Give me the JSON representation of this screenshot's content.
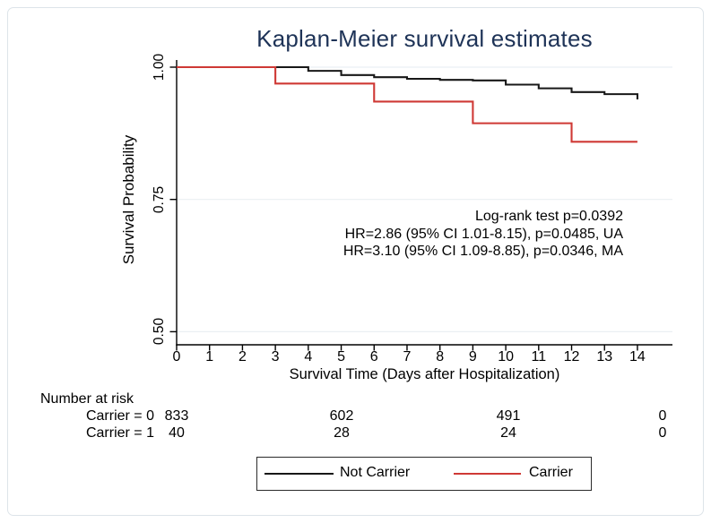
{
  "figure": {
    "title": "Kaplan-Meier survival estimates",
    "title_color": "#1e3357",
    "background": "#ffffff",
    "border_color": "#dde4e9"
  },
  "chart_data": {
    "type": "line",
    "subtype": "kaplan-meier-step",
    "title": "Kaplan-Meier survival estimates",
    "xlabel": "Survival Time (Days after Hospitalization)",
    "ylabel": "Survival Probability",
    "xlim": [
      0,
      15.1
    ],
    "ylim": [
      0.475,
      1.01
    ],
    "grid": "horizontal-light",
    "x_ticks": [
      0,
      1,
      2,
      3,
      4,
      5,
      6,
      7,
      8,
      9,
      10,
      11,
      12,
      13,
      14
    ],
    "y_ticks": [
      {
        "value": 1.0,
        "label": "1.00"
      },
      {
        "value": 0.75,
        "label": "0.75"
      },
      {
        "value": 0.5,
        "label": "0.50"
      }
    ],
    "series": [
      {
        "name": "Not Carrier",
        "color": "#181818",
        "end_day": 14,
        "steps": [
          [
            0,
            1.0
          ],
          [
            4,
            0.993
          ],
          [
            5,
            0.985
          ],
          [
            6,
            0.981
          ],
          [
            7,
            0.978
          ],
          [
            8,
            0.976
          ],
          [
            9,
            0.975
          ],
          [
            10,
            0.967
          ],
          [
            11,
            0.96
          ],
          [
            12,
            0.953
          ],
          [
            13,
            0.949
          ],
          [
            14,
            0.939
          ]
        ]
      },
      {
        "name": "Carrier",
        "color": "#cf3935",
        "end_day": 14,
        "steps": [
          [
            0,
            1.0
          ],
          [
            3,
            0.969
          ],
          [
            6,
            0.935
          ],
          [
            9,
            0.894
          ],
          [
            12,
            0.859
          ]
        ]
      }
    ],
    "annotations": [
      "Log-rank test p=0.0392",
      "HR=2.86 (95% CI 1.01-8.15), p=0.0485, UA",
      "HR=3.10 (95% CI 1.09-8.85), p=0.0346, MA"
    ]
  },
  "annotations": {
    "lines": [
      "Log-rank test p=0.0392",
      "HR=2.86 (95% CI 1.01-8.15), p=0.0485, UA",
      "HR=3.10 (95% CI 1.09-8.85), p=0.0346, MA"
    ]
  },
  "risk_table": {
    "heading": "Number at risk",
    "time_points": [
      0,
      5,
      10,
      15
    ],
    "rows": [
      {
        "label": "Carrier = 0",
        "values": [
          "833",
          "602",
          "491",
          "0"
        ]
      },
      {
        "label": "Carrier = 1",
        "values": [
          "40",
          "28",
          "24",
          "0"
        ]
      }
    ]
  },
  "legend": {
    "items": [
      {
        "label": "Not Carrier",
        "color": "#181818"
      },
      {
        "label": "Carrier",
        "color": "#cf3935"
      }
    ]
  }
}
